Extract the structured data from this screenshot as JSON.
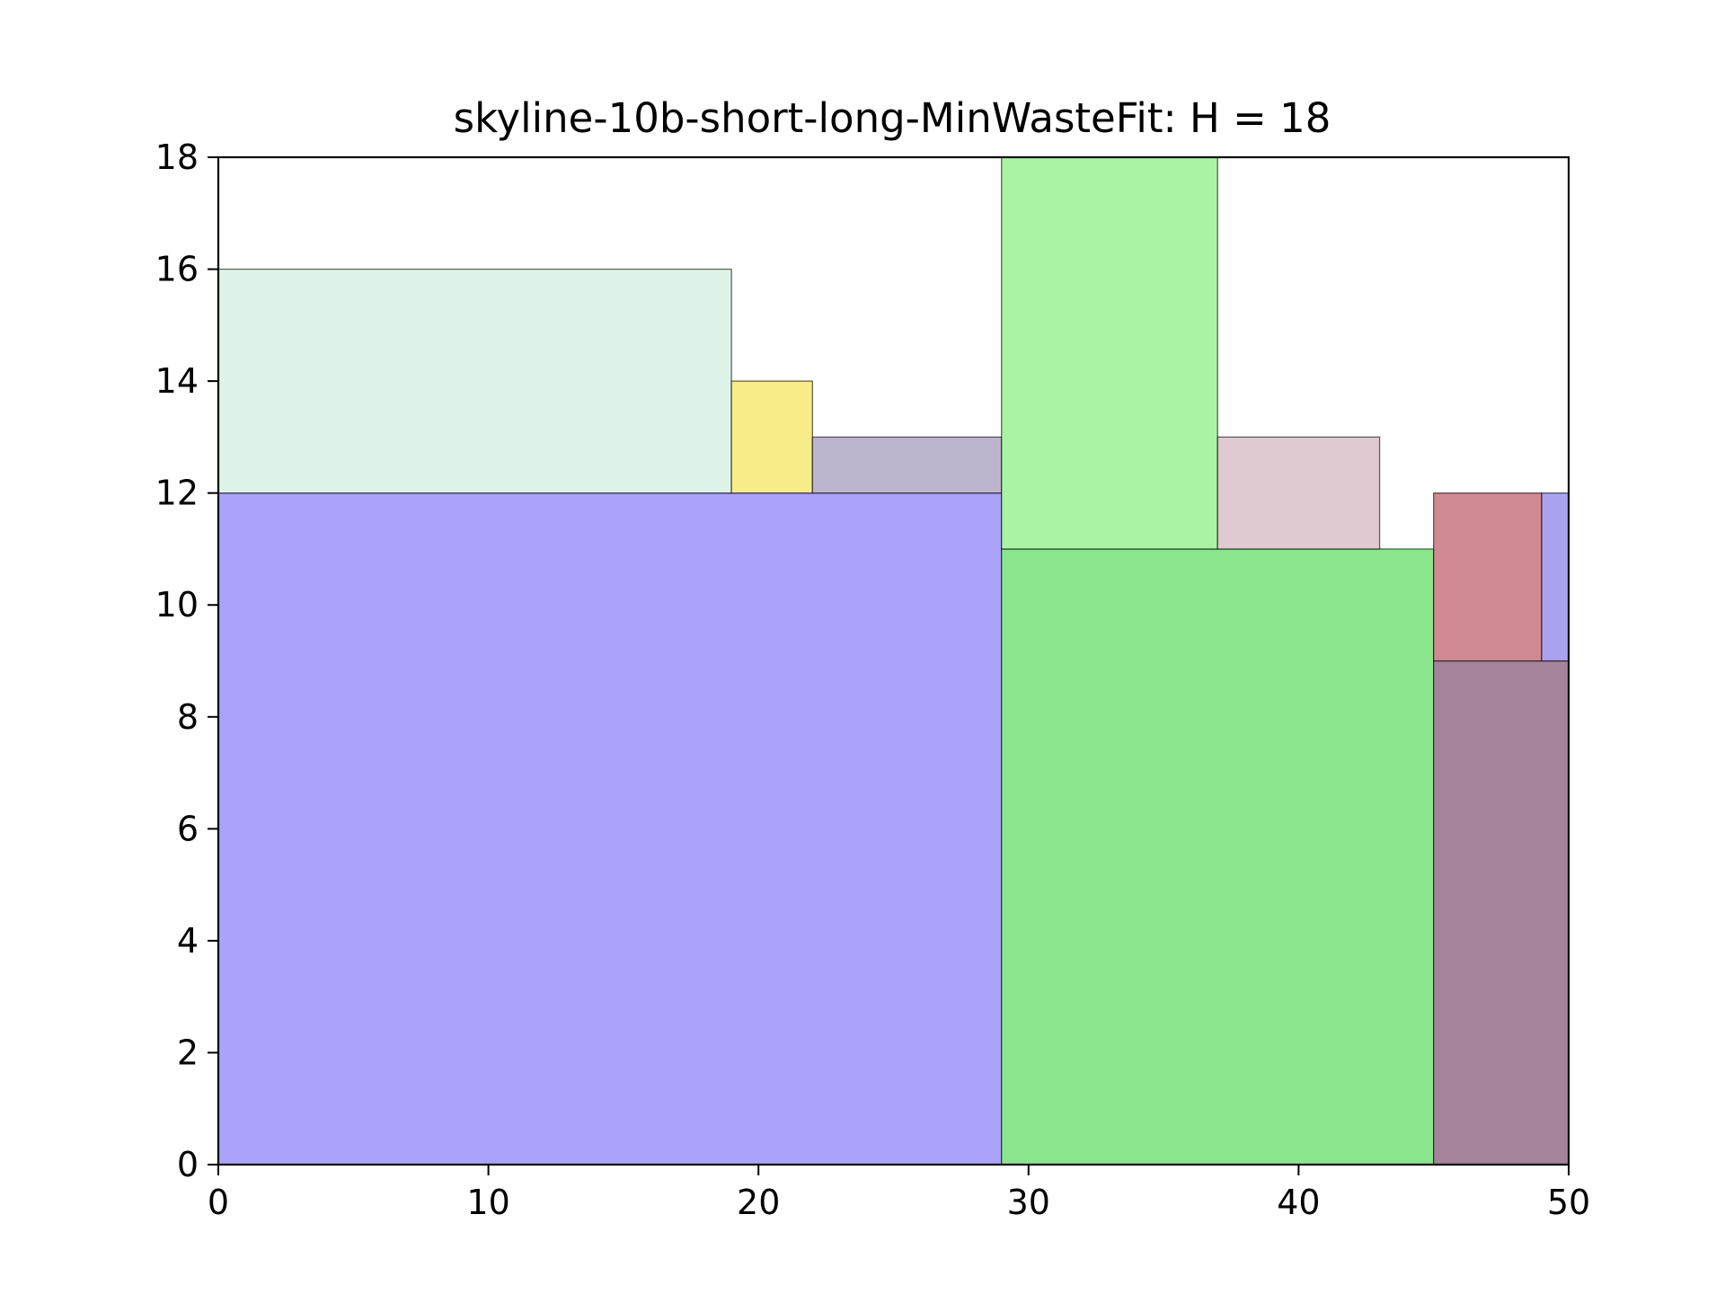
{
  "chart_data": {
    "type": "rectangle-packing",
    "title": "skyline-10b-short-long-MinWasteFit: H = 18",
    "xlabel": "",
    "ylabel": "",
    "xlim": [
      0,
      50
    ],
    "ylim": [
      0,
      18
    ],
    "grid": false,
    "x_ticks": [
      0,
      10,
      20,
      30,
      40,
      50
    ],
    "x_tick_labels": [
      "0",
      "10",
      "20",
      "30",
      "40",
      "50"
    ],
    "y_ticks": [
      0,
      2,
      4,
      6,
      8,
      10,
      12,
      14,
      16,
      18
    ],
    "y_tick_labels": [
      "0",
      "2",
      "4",
      "6",
      "8",
      "10",
      "12",
      "14",
      "16",
      "18"
    ],
    "rectangles": [
      {
        "x": 0,
        "y": 0,
        "w": 29,
        "h": 12,
        "color": "#aba2fa"
      },
      {
        "x": 0,
        "y": 12,
        "w": 19,
        "h": 4,
        "color": "#dff4e8"
      },
      {
        "x": 19,
        "y": 12,
        "w": 3,
        "h": 2,
        "color": "#f8ec89"
      },
      {
        "x": 22,
        "y": 12,
        "w": 7,
        "h": 1,
        "color": "#bdb4cd"
      },
      {
        "x": 29,
        "y": 0,
        "w": 16,
        "h": 11,
        "color": "#8ae68c"
      },
      {
        "x": 29,
        "y": 11,
        "w": 8,
        "h": 7,
        "color": "#aaf3a2"
      },
      {
        "x": 37,
        "y": 11,
        "w": 6,
        "h": 2,
        "color": "#dfcad1"
      },
      {
        "x": 45,
        "y": 0,
        "w": 5,
        "h": 9,
        "color": "#a58499"
      },
      {
        "x": 45,
        "y": 9,
        "w": 4,
        "h": 3,
        "color": "#d18a93"
      },
      {
        "x": 49,
        "y": 9,
        "w": 1,
        "h": 3,
        "color": "#aba2f0"
      }
    ]
  }
}
